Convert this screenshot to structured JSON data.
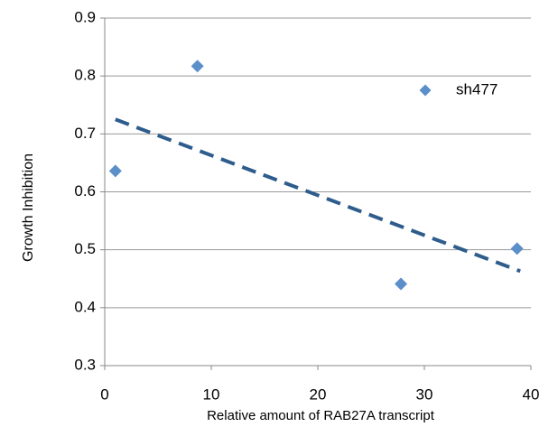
{
  "chart_data": {
    "type": "scatter",
    "x_label": "Relative amount of RAB27A transcript",
    "y_label": "Growth Inhibition",
    "series": [
      {
        "name": "sh477",
        "color": "#5b8fc9",
        "x": [
          1,
          8.7,
          27.8,
          38.7
        ],
        "values": [
          0.636,
          0.817,
          0.441,
          0.502
        ]
      }
    ],
    "trendline": {
      "color": "#2e5c8c",
      "x": [
        1,
        39
      ],
      "values": [
        0.725,
        0.463
      ]
    },
    "xlim": [
      0,
      40
    ],
    "xticks": [
      0,
      10,
      20,
      30,
      40
    ],
    "ylim": [
      0.3,
      0.9
    ],
    "yticks": [
      0.3,
      0.4,
      0.5,
      0.6,
      0.7,
      0.8,
      0.9
    ],
    "grid": true,
    "legend": "upper right"
  }
}
